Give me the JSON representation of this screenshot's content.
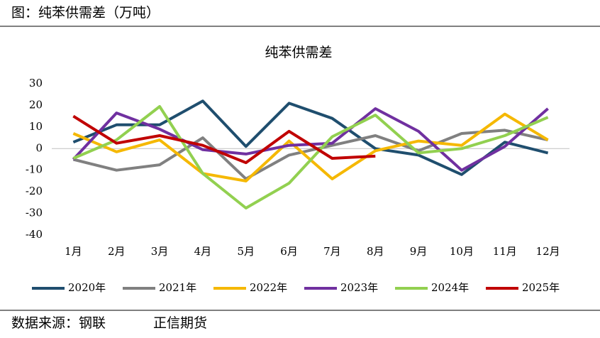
{
  "header": {
    "title": "图：纯苯供需差（万吨）"
  },
  "chart_data": {
    "type": "line",
    "title": "纯苯供需差",
    "categories": [
      "1月",
      "2月",
      "3月",
      "4月",
      "5月",
      "6月",
      "7月",
      "8月",
      "9月",
      "10月",
      "11月",
      "12月"
    ],
    "series": [
      {
        "name": "2020年",
        "color": "#1f4e6e",
        "values": [
          3,
          11,
          11,
          22,
          1,
          21,
          14,
          0,
          -3,
          -12,
          3,
          -2
        ]
      },
      {
        "name": "2021年",
        "color": "#808080",
        "values": [
          -5,
          -10,
          -7.5,
          5,
          -14,
          -3,
          1.5,
          6,
          -1,
          7,
          8.5,
          4
        ]
      },
      {
        "name": "2022年",
        "color": "#f5b800",
        "values": [
          7,
          -1.5,
          4,
          -11.5,
          -15,
          3.5,
          -14,
          -1,
          3.5,
          1.5,
          16,
          4
        ]
      },
      {
        "name": "2023年",
        "color": "#7030a0",
        "values": [
          -5,
          16.5,
          9,
          -0.5,
          -2.5,
          1.5,
          2.5,
          18.5,
          8,
          -10,
          1,
          18.5
        ]
      },
      {
        "name": "2024年",
        "color": "#92d050",
        "values": [
          -4.5,
          4,
          19.5,
          -11.5,
          -27.5,
          -16,
          5.5,
          15.5,
          -2,
          0,
          6,
          14.5
        ]
      },
      {
        "name": "2025年",
        "color": "#c00000",
        "values": [
          15,
          2.5,
          6,
          1.5,
          -6.5,
          8,
          -4.5,
          -3.5,
          null,
          null,
          null,
          null
        ]
      }
    ],
    "ylim": [
      -40,
      30
    ],
    "yticks": [
      30,
      20,
      10,
      0,
      -10,
      -20,
      -30,
      -40
    ],
    "zero_line": true,
    "legend": "bottom"
  },
  "footer": {
    "source": "数据来源：钢联",
    "brand": "正信期货"
  }
}
